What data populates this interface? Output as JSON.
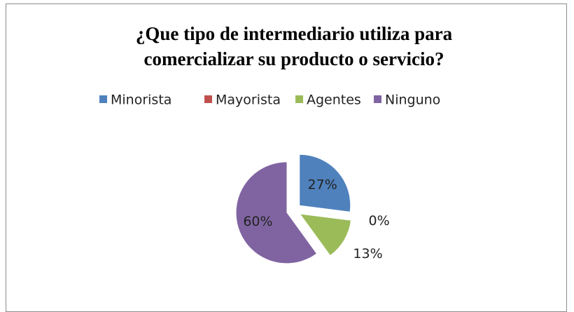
{
  "chart_data": {
    "type": "pie",
    "title": "¿Que tipo de intermediario utiliza para comercializar su producto o servicio?",
    "categories": [
      "Minorista",
      "Mayorista",
      "Agentes",
      "Ninguno"
    ],
    "values": [
      27,
      0,
      13,
      60
    ],
    "value_labels": [
      "27%",
      "0%",
      "13%",
      "60%"
    ],
    "colors": [
      "#4f81bd",
      "#c0504d",
      "#9bbb59",
      "#8064a2"
    ],
    "legend": "top"
  }
}
